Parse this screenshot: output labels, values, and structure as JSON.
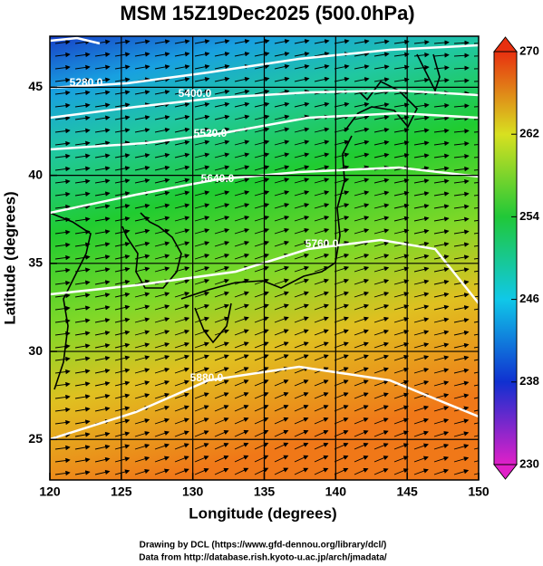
{
  "chart_data": {
    "type": "map",
    "title": "MSM 15Z19Dec2025 (500.0hPa)",
    "x_label": "Longitude (degrees)",
    "y_label": "Latitude  (degrees)",
    "xlim": [
      120,
      150
    ],
    "xticks": [
      120,
      125,
      130,
      135,
      140,
      145,
      150
    ],
    "ylim": [
      22.7,
      47.9
    ],
    "yticks": [
      25,
      30,
      35,
      40,
      45
    ],
    "grid": true,
    "contour_labels": [
      "5280.0",
      "5400.0",
      "5520.0",
      "5640.0",
      "5760.0",
      "5880.0"
    ],
    "colorbar": {
      "lim": [
        230,
        270
      ],
      "ticks": [
        230,
        238,
        246,
        254,
        262,
        270
      ],
      "colors": [
        "#e020c8",
        "#1030d0",
        "#10c8e8",
        "#20c838",
        "#d8e020",
        "#e83010"
      ]
    },
    "footer": [
      "Drawing by DCL (https://www.gfd-dennou.org/library/dcl/)",
      "Data from http://database.rish.kyoto-u.ac.jp/arch/jmadata/"
    ]
  }
}
